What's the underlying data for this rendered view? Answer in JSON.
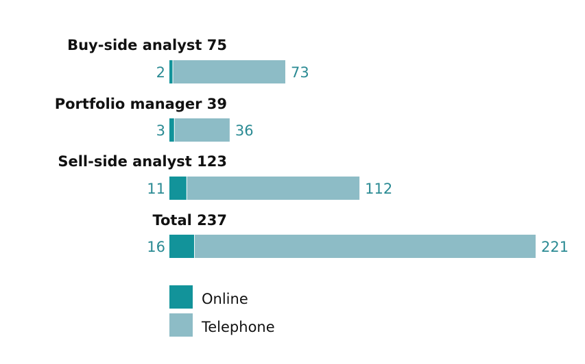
{
  "chart_data": {
    "type": "bar",
    "orientation": "horizontal",
    "stacked": true,
    "categories": [
      "Buy-side analyst 75",
      "Portfolio manager 39",
      "Sell-side analyst 123",
      "Total 237"
    ],
    "series": [
      {
        "name": "Online",
        "values": [
          2,
          3,
          11,
          16
        ],
        "color": "#12939a"
      },
      {
        "name": "Telephone",
        "values": [
          73,
          36,
          112,
          221
        ],
        "color": "#8dbcc6"
      }
    ],
    "xlim": [
      0,
      237
    ],
    "grid": false,
    "legend": "bottom-left",
    "value_label_color": "#2a8a93"
  }
}
